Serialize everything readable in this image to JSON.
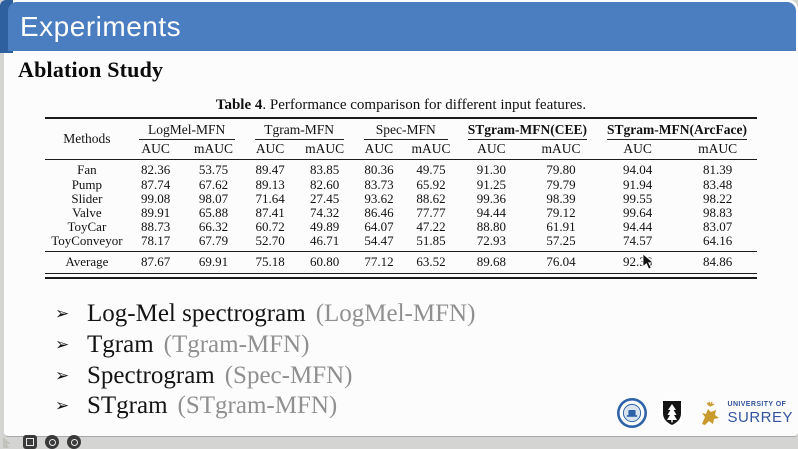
{
  "banner": {
    "title": "Experiments",
    "color": "#4b7ec0"
  },
  "slide": {
    "heading": "Ablation Study"
  },
  "table": {
    "caption_label": "Table 4",
    "caption_rest": ". Performance comparison for different input features.",
    "methods_header": "Methods",
    "groups": [
      {
        "label": "LogMel-MFN",
        "bold": false
      },
      {
        "label": "Tgram-MFN",
        "bold": false
      },
      {
        "label": "Spec-MFN",
        "bold": false
      },
      {
        "label": "STgram-MFN(CEE)",
        "bold": true
      },
      {
        "label": "STgram-MFN(ArcFace)",
        "bold": true
      }
    ],
    "subheaders": [
      "AUC",
      "mAUC"
    ],
    "rows": [
      {
        "method": "Fan",
        "values": [
          "82.36",
          "53.75",
          "89.47",
          "83.85",
          "80.36",
          "49.75",
          "91.30",
          "79.80",
          "94.04",
          "81.39"
        ],
        "bold": [
          3,
          8
        ]
      },
      {
        "method": "Pump",
        "values": [
          "87.74",
          "67.62",
          "89.13",
          "82.60",
          "83.73",
          "65.92",
          "91.25",
          "79.79",
          "91.94",
          "83.48"
        ],
        "bold": [
          8,
          9
        ]
      },
      {
        "method": "Slider",
        "values": [
          "99.08",
          "98.07",
          "71.64",
          "27.45",
          "93.62",
          "88.62",
          "99.36",
          "98.39",
          "99.55",
          "98.22"
        ],
        "bold": [
          7,
          8
        ]
      },
      {
        "method": "Valve",
        "values": [
          "89.91",
          "65.88",
          "87.41",
          "74.32",
          "86.46",
          "77.77",
          "94.44",
          "79.12",
          "99.64",
          "98.83"
        ],
        "bold": [
          8,
          9
        ]
      },
      {
        "method": "ToyCar",
        "values": [
          "88.73",
          "66.32",
          "60.72",
          "49.89",
          "64.07",
          "47.22",
          "88.80",
          "61.91",
          "94.44",
          "83.07"
        ],
        "bold": [
          8,
          9
        ]
      },
      {
        "method": "ToyConveyor",
        "values": [
          "78.17",
          "67.79",
          "52.70",
          "46.71",
          "54.47",
          "51.85",
          "72.93",
          "57.25",
          "74.57",
          "64.16"
        ],
        "bold": [
          0,
          1
        ]
      }
    ],
    "average": {
      "method": "Average",
      "values": [
        "87.67",
        "69.91",
        "75.18",
        "60.80",
        "77.12",
        "63.52",
        "89.68",
        "76.04",
        "92.36",
        "84.86"
      ],
      "bold": [
        8,
        9
      ]
    }
  },
  "bullets": {
    "marker": "➢",
    "items": [
      {
        "text": "Log-Mel spectrogram",
        "note": "(LogMel-MFN)"
      },
      {
        "text": "Tgram",
        "note": "(Tgram-MFN)"
      },
      {
        "text": "Spectrogram",
        "note": "(Spec-MFN)"
      },
      {
        "text": "STgram",
        "note": "(STgram-MFN)"
      }
    ]
  },
  "footer": {
    "surrey_line1": "UNIVERSITY OF",
    "surrey_line2": "SURREY",
    "surrey_blue": "#33549c",
    "stag_gold": "#c99a2c"
  }
}
